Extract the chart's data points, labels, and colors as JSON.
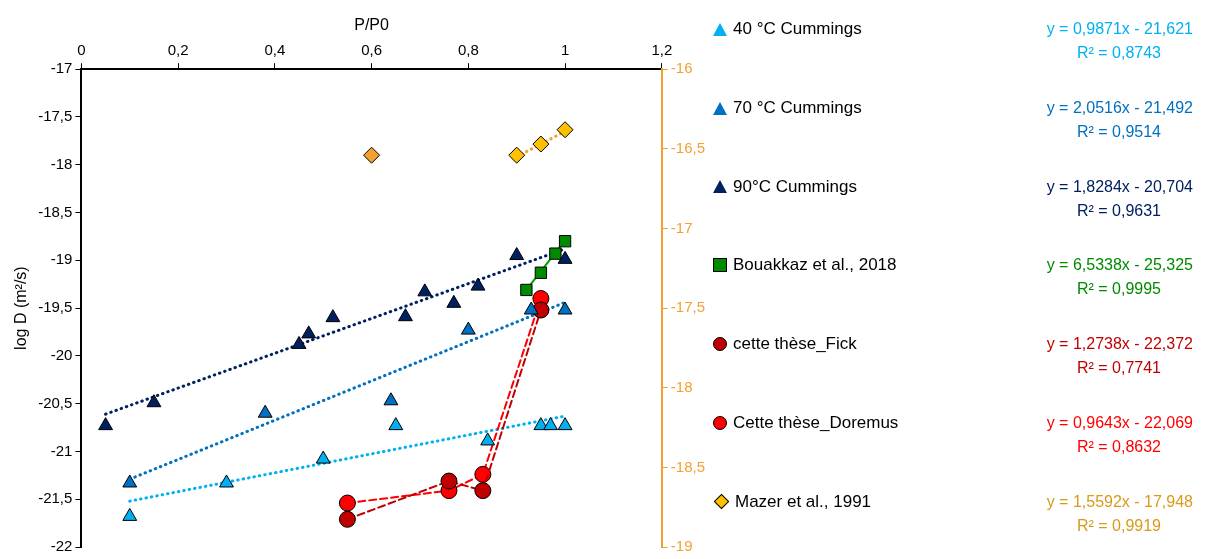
{
  "chart_data": {
    "type": "scatter",
    "xlabel": "P/P0",
    "ylabel": "log D (m²/s)",
    "legend": "right",
    "xlim": [
      0,
      1.2
    ],
    "xticks": [
      0,
      {
        "value": 0.2,
        "label": "0,2"
      },
      {
        "value": 0.4,
        "label": "0,4"
      },
      {
        "value": 0.6,
        "label": "0,6"
      },
      {
        "value": 0.8,
        "label": "0,8"
      },
      1,
      {
        "value": 1.2,
        "label": "1,2"
      }
    ],
    "ylim": [
      -22,
      -17
    ],
    "yticks": [
      -22,
      {
        "value": -21.5,
        "label": "-21,5"
      },
      -21,
      {
        "value": -20.5,
        "label": "-20,5"
      },
      -20,
      {
        "value": -19.5,
        "label": "-19,5"
      },
      -19,
      {
        "value": -18.5,
        "label": "-18,5"
      },
      -18,
      {
        "value": -17.5,
        "label": "-17,5"
      },
      -17
    ],
    "y2lim": [
      -19,
      -16
    ],
    "y2ticks": [
      -19,
      {
        "value": -18.5,
        "label": "-18,5"
      },
      -18,
      {
        "value": -17.5,
        "label": "-17,5"
      },
      -17,
      {
        "value": -16.5,
        "label": "-16,5"
      },
      -16
    ],
    "series": [
      {
        "type": "scatter",
        "name": "40 °C Cummings",
        "color": "#00b0f0",
        "marker": "triangle",
        "x": [
          0.1,
          0.3,
          0.5,
          0.65,
          0.84,
          0.95,
          0.97,
          1.0
        ],
        "values": [
          -21.68,
          -21.33,
          -21.08,
          -20.73,
          -20.89,
          -20.73,
          -20.73,
          -20.73
        ]
      },
      {
        "type": "scatter",
        "name": "70 °C Cummings",
        "color": "#0070c0",
        "marker": "triangle",
        "x": [
          0.1,
          0.38,
          0.64,
          0.8,
          0.93,
          1.0
        ],
        "values": [
          -21.33,
          -20.6,
          -20.47,
          -19.73,
          -19.52,
          -19.52
        ]
      },
      {
        "type": "scatter",
        "name": "90°C Cummings",
        "color": "#002060",
        "marker": "triangle",
        "x": [
          0.05,
          0.15,
          0.45,
          0.47,
          0.52,
          0.67,
          0.71,
          0.77,
          0.82,
          0.9,
          1.0
        ],
        "values": [
          -20.73,
          -20.49,
          -19.88,
          -19.77,
          -19.6,
          -19.59,
          -19.33,
          -19.45,
          -19.27,
          -18.95,
          -18.99
        ]
      },
      {
        "type": "scatter",
        "name": "Bouakkaz et al., 2018",
        "color": "#008a00",
        "marker": "square",
        "x": [
          0.92,
          0.95,
          0.98,
          1.0
        ],
        "values": [
          -19.31,
          -19.13,
          -18.93,
          -18.8
        ]
      },
      {
        "type": "line",
        "name": "cette thèse_Fick",
        "color": "#c00000",
        "marker": "circle",
        "line_style": "dashed",
        "x": [
          0.55,
          0.76,
          0.83,
          0.95
        ],
        "values": [
          -21.71,
          -21.31,
          -21.41,
          -19.52
        ]
      },
      {
        "type": "line",
        "name": "Cette thèse_Doremus",
        "color": "#ff0000",
        "marker": "circle",
        "line_style": "dashed",
        "x": [
          0.55,
          0.76,
          0.83,
          0.95
        ],
        "values": [
          -21.54,
          -21.41,
          -21.24,
          -19.4
        ]
      },
      {
        "type": "scatter",
        "name": "Mazer et al., 1991",
        "color": "#ffc000",
        "marker": "diamond",
        "axis": "y2",
        "colors": [
          "#f4a030",
          "#ffc000",
          "#ffc000",
          "#ffc000"
        ],
        "x": [
          0.6,
          0.9,
          0.95,
          1.0
        ],
        "values": [
          -16.54,
          -16.54,
          -16.47,
          -16.38
        ]
      },
      {
        "type": "line",
        "color": "#00b0f0",
        "marker": "none",
        "line_style": "dotted",
        "x": [
          0.1,
          1.0
        ],
        "values": [
          -21.52,
          -20.63
        ]
      },
      {
        "type": "line",
        "color": "#0070c0",
        "marker": "none",
        "line_style": "dotted",
        "x": [
          0.1,
          1.0
        ],
        "values": [
          -21.29,
          -19.44
        ]
      },
      {
        "type": "line",
        "color": "#002060",
        "marker": "none",
        "line_style": "dotted",
        "x": [
          0.05,
          1.0
        ],
        "values": [
          -20.61,
          -18.88
        ]
      },
      {
        "type": "line",
        "color": "#00a000",
        "marker": "none",
        "line_style": "solid",
        "x": [
          0.92,
          1.0
        ],
        "values": [
          -19.31,
          -18.79
        ]
      },
      {
        "type": "line",
        "color": "#f4a030",
        "marker": "none",
        "line_style": "dotted",
        "axis": "y2",
        "x": [
          0.9,
          1.0
        ],
        "values": [
          -16.55,
          -16.39
        ]
      }
    ],
    "annotations": [
      "y = 0,9871x - 21,621",
      "R² = 0,8743",
      "y = 2,0516x - 21,492",
      "R² = 0,9514",
      "y = 1,8284x - 20,704",
      "R² = 0,9631",
      "y = 6,5338x - 25,325",
      "R² = 0,9995",
      "y = 1,2738x - 22,372",
      "R² = 0,7741",
      "y = 0,9643x - 22,069",
      "R² = 0,8632",
      "y = 1,5592x - 17,948",
      "R² = 0,9919"
    ]
  }
}
